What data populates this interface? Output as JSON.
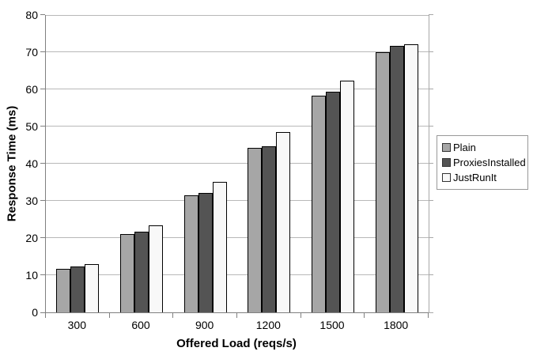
{
  "chart_data": {
    "type": "bar",
    "title": "",
    "xlabel": "Offered Load (reqs/s)",
    "ylabel": "Response Time (ms)",
    "categories": [
      "300",
      "600",
      "900",
      "1200",
      "1500",
      "1800"
    ],
    "series": [
      {
        "name": "Plain",
        "color": "#a6a6a6",
        "values": [
          11.8,
          21.0,
          31.4,
          44.2,
          58.2,
          70.0
        ]
      },
      {
        "name": "ProxiesInstalled",
        "color": "#545454",
        "values": [
          12.4,
          21.6,
          32.1,
          44.6,
          59.3,
          71.8
        ]
      },
      {
        "name": "JustRunIt",
        "color": "#f8f8f8",
        "values": [
          12.9,
          23.5,
          35.0,
          48.5,
          62.3,
          72.2
        ]
      }
    ],
    "ylim": [
      0,
      80
    ],
    "yticks": [
      0,
      10,
      20,
      30,
      40,
      50,
      60,
      70,
      80
    ],
    "grid": true,
    "legend_position": "right",
    "bar_border_color": "#000000",
    "gridline_color": "#b8b8b8",
    "axis_color": "#808080",
    "background_color": "#ffffff"
  }
}
